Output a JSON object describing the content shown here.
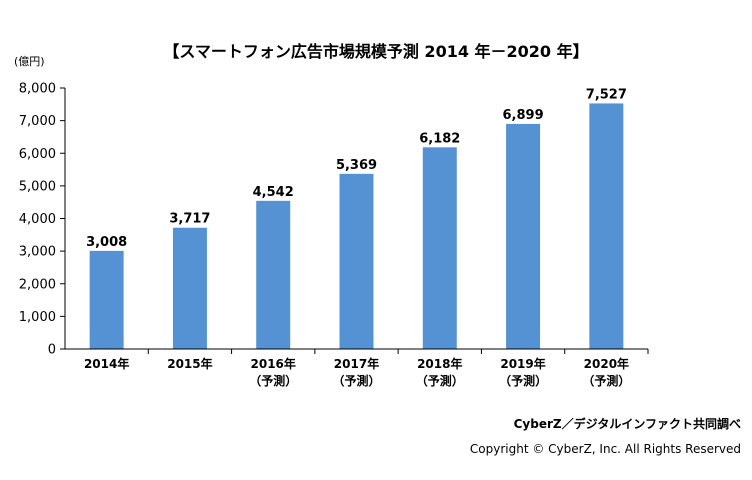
{
  "page": {
    "unit_label": "(億円)",
    "credit": "CyberZ／デジタルインファクト共同調べ",
    "copyright": "Copyright © CyberZ, Inc. All Rights Reserved"
  },
  "chart_data": {
    "type": "bar",
    "title": "【スマートフォン広告市場規模予測 2014 年－2020 年】",
    "categories": [
      {
        "label": "2014年",
        "sub": ""
      },
      {
        "label": "2015年",
        "sub": ""
      },
      {
        "label": "2016年",
        "sub": "（予測）"
      },
      {
        "label": "2017年",
        "sub": "（予測）"
      },
      {
        "label": "2018年",
        "sub": "（予測）"
      },
      {
        "label": "2019年",
        "sub": "（予測）"
      },
      {
        "label": "2020年",
        "sub": "（予測）"
      }
    ],
    "values": [
      3008,
      3717,
      4542,
      5369,
      6182,
      6899,
      7527
    ],
    "value_labels": [
      "3,008",
      "3,717",
      "4,542",
      "5,369",
      "6,182",
      "6,899",
      "7,527"
    ],
    "yticks": [
      "0",
      "1,000",
      "2,000",
      "3,000",
      "4,000",
      "5,000",
      "6,000",
      "7,000",
      "8,000"
    ],
    "ylim": [
      0,
      8000
    ],
    "grid": false,
    "bar_color": "#5592d4"
  }
}
